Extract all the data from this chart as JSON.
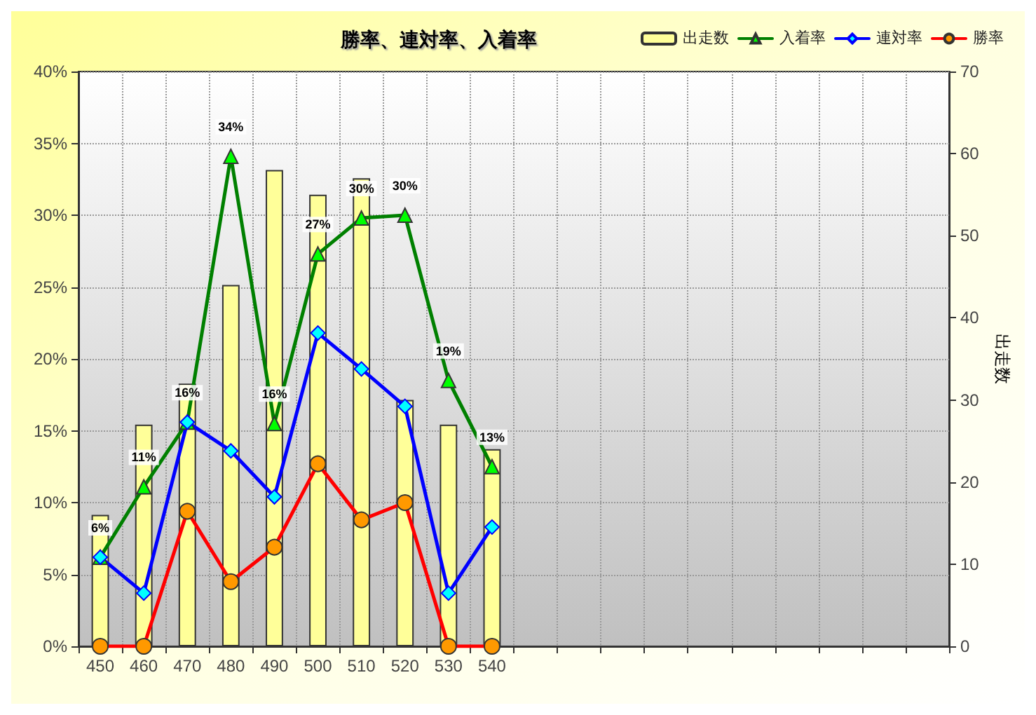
{
  "chart_data": {
    "type": "line",
    "title": "勝率、連対率、入着率",
    "y2label": "出走数",
    "categories": [
      "450",
      "460",
      "470",
      "480",
      "490",
      "500",
      "510",
      "520",
      "530",
      "540",
      null,
      null,
      null,
      null,
      null,
      null,
      null,
      null,
      null,
      null
    ],
    "series": [
      {
        "name": "出走数",
        "type": "bar",
        "axis": "y2",
        "color": "#ffff99",
        "values": [
          16,
          27,
          32,
          44,
          58,
          55,
          57,
          30,
          27,
          24,
          null,
          null,
          null,
          null,
          null,
          null,
          null,
          null,
          null,
          null
        ]
      },
      {
        "name": "入着率",
        "color": "#008000",
        "marker": "triangle",
        "values": [
          6.2,
          11.1,
          15.6,
          34.1,
          15.5,
          27.3,
          29.8,
          30.0,
          18.5,
          12.5,
          null,
          null,
          null,
          null,
          null,
          null,
          null,
          null,
          null,
          null
        ],
        "value_labels": [
          "6%",
          "11%",
          "16%",
          "34%",
          "16%",
          "27%",
          "30%",
          "30%",
          "19%",
          "13%",
          null,
          null,
          null,
          null,
          null,
          null,
          null,
          null,
          null,
          null
        ]
      },
      {
        "name": "連対率",
        "color": "#0000ff",
        "marker": "diamond",
        "values": [
          6.2,
          3.7,
          15.6,
          13.6,
          10.4,
          21.8,
          19.3,
          16.7,
          3.7,
          8.3,
          null,
          null,
          null,
          null,
          null,
          null,
          null,
          null,
          null,
          null
        ]
      },
      {
        "name": "勝率",
        "color": "#ff0000",
        "marker": "circle",
        "values": [
          0,
          0,
          9.4,
          4.5,
          6.9,
          12.7,
          8.8,
          10.0,
          0,
          0,
          null,
          null,
          null,
          null,
          null,
          null,
          null,
          null,
          null,
          null
        ]
      }
    ],
    "ylim": [
      0,
      40
    ],
    "yticks": [
      {
        "value": 0,
        "label": "0%"
      },
      {
        "value": 5,
        "label": "5%"
      },
      {
        "value": 10,
        "label": "10%"
      },
      {
        "value": 15,
        "label": "15%"
      },
      {
        "value": 20,
        "label": "20%"
      },
      {
        "value": 25,
        "label": "25%"
      },
      {
        "value": 30,
        "label": "30%"
      },
      {
        "value": 35,
        "label": "35%"
      },
      {
        "value": 40,
        "label": "40%"
      }
    ],
    "y2lim": [
      0,
      70
    ],
    "y2ticks": [
      0,
      10,
      20,
      30,
      40,
      50,
      60,
      70
    ],
    "grid": true,
    "legend": "top right"
  }
}
